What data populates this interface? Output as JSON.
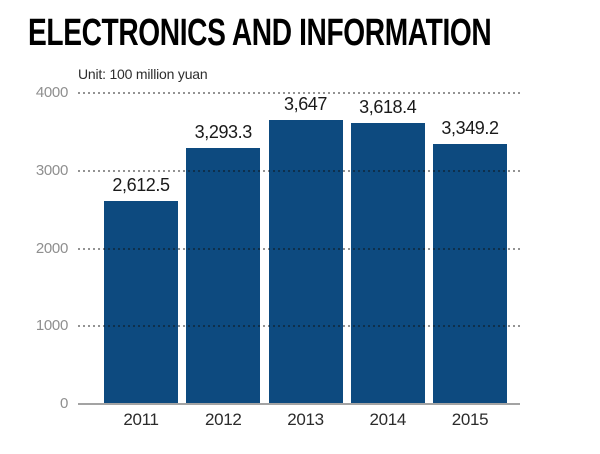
{
  "title": "ELECTRONICS AND INFORMATION",
  "subtitle": "Unit: 100 million yuan",
  "colors": {
    "background": "#ffffff",
    "bar": "#0d4a7f",
    "gridline_on_white": "#999999",
    "axis_line": "#a3a3a3",
    "ytick_label": "#8f8f8f",
    "value_label": "#1a1a1a",
    "year_label": "#2b2b2b",
    "title": "#000000"
  },
  "chart_data": {
    "type": "bar",
    "title": "ELECTRONICS AND INFORMATION",
    "subtitle": "Unit: 100 million yuan",
    "categories": [
      "2011",
      "2012",
      "2013",
      "2014",
      "2015"
    ],
    "values": [
      2612.5,
      3293.3,
      3647,
      3618.4,
      3349.2
    ],
    "value_labels": [
      "2,612.5",
      "3,293.3",
      "3,647",
      "3,618.4",
      "3,349.2"
    ],
    "xlabel": "",
    "ylabel": "Unit: 100 million yuan",
    "ylim": [
      0,
      4000
    ],
    "yticks": [
      0,
      1000,
      2000,
      3000,
      4000
    ],
    "grid": "horizontal dotted gridlines drawn over bars",
    "legend": "none"
  }
}
